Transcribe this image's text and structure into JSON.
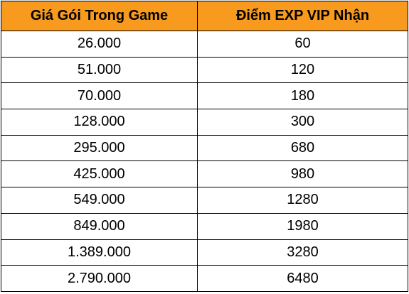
{
  "colors": {
    "header_background": "#f79a1e",
    "border": "#000000",
    "text": "#000000"
  },
  "table": {
    "headers": [
      "Giá Gói Trong Game",
      "Điểm EXP VIP Nhận"
    ],
    "rows": [
      [
        "26.000",
        "60"
      ],
      [
        "51.000",
        "120"
      ],
      [
        "70.000",
        "180"
      ],
      [
        "128.000",
        "300"
      ],
      [
        "295.000",
        "680"
      ],
      [
        "425.000",
        "980"
      ],
      [
        "549.000",
        "1280"
      ],
      [
        "849.000",
        "1980"
      ],
      [
        "1.389.000",
        "3280"
      ],
      [
        "2.790.000",
        "6480"
      ]
    ]
  }
}
